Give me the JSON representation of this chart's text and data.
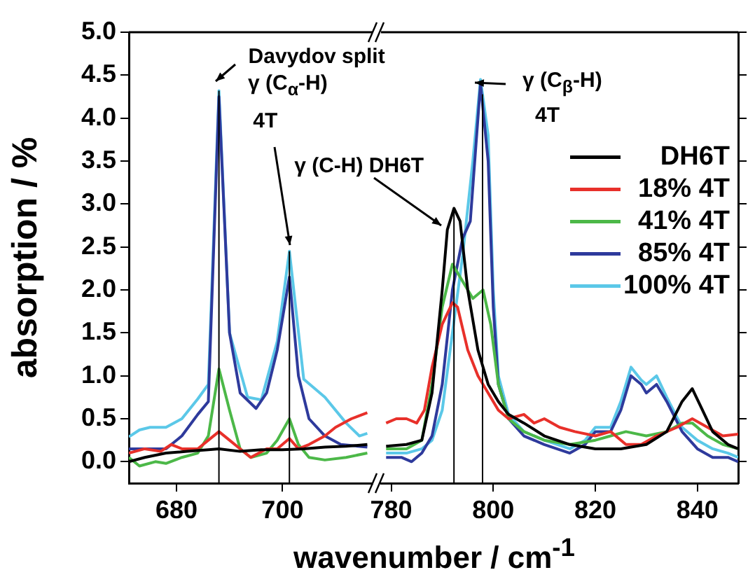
{
  "chart_data": [
    {
      "type": "line",
      "ylabel": "absorption / %",
      "xlim": [
        671,
        717
      ],
      "xticks": [
        680,
        700
      ],
      "ylim": [
        -0.25,
        5.0
      ],
      "yticks": [
        {
          "value": 0,
          "label": "0.0"
        },
        {
          "value": 0.5,
          "label": "0.5"
        },
        {
          "value": 1,
          "label": "1.0"
        },
        {
          "value": 1.5,
          "label": "1.5"
        },
        {
          "value": 2,
          "label": "2.0"
        },
        {
          "value": 2.5,
          "label": "2.5"
        },
        {
          "value": 3,
          "label": "3.0"
        },
        {
          "value": 3.5,
          "label": "3.5"
        },
        {
          "value": 4,
          "label": "4.0"
        },
        {
          "value": 4.5,
          "label": "4.5"
        },
        {
          "value": 5,
          "label": "5.0"
        }
      ],
      "grid": false,
      "legend": false,
      "marker": "none",
      "line_style": "solid",
      "series": [
        {
          "color": "#000000",
          "x": [
            671,
            674,
            678,
            682,
            686,
            688,
            692,
            696,
            700,
            704,
            708,
            712,
            716
          ],
          "values": [
            0.0,
            0.05,
            0.1,
            0.12,
            0.14,
            0.15,
            0.12,
            0.14,
            0.14,
            0.15,
            0.17,
            0.18,
            0.2
          ]
        },
        {
          "color": "#e8302a",
          "x": [
            671,
            674,
            677,
            679,
            681,
            684,
            686,
            688,
            690,
            692,
            694,
            697,
            699,
            701.3,
            703,
            705,
            708,
            710,
            713,
            716
          ],
          "values": [
            0.1,
            0.15,
            0.12,
            0.2,
            0.15,
            0.15,
            0.25,
            0.35,
            0.25,
            0.15,
            0.05,
            0.15,
            0.15,
            0.27,
            0.15,
            0.2,
            0.3,
            0.4,
            0.5,
            0.57
          ]
        },
        {
          "color": "#4cb848",
          "x": [
            671,
            673,
            676,
            678,
            681,
            684,
            686,
            688,
            690,
            692,
            694,
            697,
            699,
            701.3,
            703,
            705,
            708,
            712,
            716
          ],
          "values": [
            0.05,
            -0.05,
            0.0,
            -0.02,
            0.05,
            0.1,
            0.3,
            1.08,
            0.6,
            0.15,
            0.05,
            0.1,
            0.25,
            0.5,
            0.2,
            0.05,
            0.02,
            0.05,
            0.1
          ]
        },
        {
          "color": "#2e3a9c",
          "x": [
            671,
            678,
            681,
            684,
            686,
            688,
            690,
            692,
            695,
            697,
            699,
            701.3,
            703,
            705,
            708,
            711,
            716
          ],
          "values": [
            0.15,
            0.15,
            0.3,
            0.55,
            0.7,
            4.25,
            1.5,
            0.8,
            0.62,
            0.8,
            1.3,
            2.15,
            1.0,
            0.5,
            0.3,
            0.2,
            0.17
          ]
        },
        {
          "color": "#5bc8e8",
          "x": [
            671,
            673,
            675,
            678,
            681,
            684,
            686,
            688,
            690,
            693.4,
            696,
            699,
            701.3,
            704,
            708,
            712,
            714.5,
            716
          ],
          "values": [
            0.29,
            0.37,
            0.4,
            0.4,
            0.5,
            0.73,
            0.9,
            4.32,
            1.5,
            0.75,
            0.72,
            1.4,
            2.45,
            0.96,
            0.75,
            0.45,
            0.3,
            0.33
          ]
        }
      ],
      "ref_lines": [
        {
          "axis": "x",
          "value": 688,
          "color": "#000000"
        },
        {
          "axis": "x",
          "value": 701.3,
          "color": "#000000"
        }
      ],
      "annotations": [
        {
          "text": "Davydov split",
          "x": 688,
          "y": 4.32
        },
        "γ (C$_{α}$-H)",
        {
          "text": "4T",
          "x": 701.3,
          "y": 2.45
        }
      ]
    },
    {
      "type": "line",
      "xlabel": "wavenumber / cm$^{-1}$",
      "xlim": [
        778,
        848
      ],
      "xticks": [
        780,
        800,
        820,
        840
      ],
      "ylim": [
        -0.25,
        5.0
      ],
      "yticks": [
        {
          "value": 0,
          "label": null
        },
        {
          "value": 0.5,
          "label": null
        },
        {
          "value": 1,
          "label": null
        },
        {
          "value": 1.5,
          "label": null
        },
        {
          "value": 2,
          "label": null
        },
        {
          "value": 2.5,
          "label": null
        },
        {
          "value": 3,
          "label": null
        },
        {
          "value": 3.5,
          "label": null
        },
        {
          "value": 4,
          "label": null
        },
        {
          "value": 4.5,
          "label": null
        },
        {
          "value": 5,
          "label": null
        }
      ],
      "tick_labels": "x",
      "grid": false,
      "legend": "right",
      "marker": "none",
      "line_style": "solid",
      "series": [
        {
          "name": "DH6T",
          "color": "#000000",
          "x": [
            779,
            783,
            786,
            788,
            790,
            791,
            792.3,
            793.5,
            795,
            797,
            799,
            801,
            803,
            806,
            810,
            815,
            820,
            825,
            830,
            834,
            837,
            839,
            841,
            843,
            846,
            848
          ],
          "values": [
            0.18,
            0.2,
            0.25,
            0.8,
            2.0,
            2.7,
            2.95,
            2.8,
            2.0,
            1.3,
            0.9,
            0.7,
            0.55,
            0.45,
            0.3,
            0.2,
            0.15,
            0.15,
            0.2,
            0.35,
            0.7,
            0.85,
            0.6,
            0.35,
            0.2,
            0.15
          ]
        },
        {
          "name": "18% 4T",
          "color": "#e8302a",
          "x": [
            779,
            781,
            783,
            785,
            786.5,
            788,
            790,
            792,
            793,
            795,
            797,
            799,
            801,
            803,
            806,
            808,
            810,
            813,
            816,
            820,
            823,
            826,
            829,
            832,
            836,
            839,
            842,
            845,
            848
          ],
          "values": [
            0.45,
            0.5,
            0.5,
            0.45,
            0.6,
            1.1,
            1.6,
            1.85,
            1.8,
            1.3,
            1.0,
            0.8,
            0.6,
            0.5,
            0.55,
            0.45,
            0.5,
            0.4,
            0.35,
            0.3,
            0.35,
            0.2,
            0.2,
            0.3,
            0.4,
            0.5,
            0.4,
            0.3,
            0.32
          ]
        },
        {
          "name": "41% 4T",
          "color": "#4cb848",
          "x": [
            779,
            783,
            786,
            788,
            790,
            792,
            794,
            796,
            798,
            799.5,
            801,
            803,
            806,
            810,
            815,
            820,
            823,
            826,
            830,
            834,
            837,
            839,
            842,
            845,
            848
          ],
          "values": [
            0.15,
            0.15,
            0.25,
            0.9,
            1.8,
            2.3,
            2.1,
            1.9,
            2.0,
            1.6,
            0.9,
            0.5,
            0.35,
            0.25,
            0.2,
            0.25,
            0.3,
            0.35,
            0.3,
            0.35,
            0.45,
            0.45,
            0.3,
            0.2,
            0.15
          ]
        },
        {
          "name": "85% 4T",
          "color": "#2e3a9c",
          "x": [
            779,
            782,
            784,
            786,
            788,
            790,
            792,
            794,
            795.5,
            797.5,
            799,
            800,
            801,
            803,
            806,
            810,
            815,
            818,
            820,
            823,
            825,
            827,
            829,
            830,
            832,
            834,
            837,
            840,
            843,
            846,
            848
          ],
          "values": [
            0.05,
            0.05,
            0.0,
            0.1,
            0.3,
            0.9,
            2.0,
            2.6,
            2.8,
            4.4,
            3.5,
            1.8,
            0.9,
            0.5,
            0.3,
            0.2,
            0.1,
            0.2,
            0.35,
            0.35,
            0.6,
            1.0,
            0.9,
            0.8,
            0.9,
            0.7,
            0.35,
            0.15,
            0.05,
            0.05,
            0.0
          ]
        },
        {
          "name": "100% 4T",
          "color": "#5bc8e8",
          "x": [
            779,
            783,
            786,
            788,
            790,
            792,
            794,
            796,
            797.5,
            799,
            800,
            801,
            803,
            806,
            810,
            815,
            818,
            820,
            823,
            825,
            827,
            829,
            830,
            832,
            834,
            837,
            840,
            843,
            846,
            848
          ],
          "values": [
            0.1,
            0.1,
            0.15,
            0.25,
            0.6,
            1.5,
            2.4,
            3.5,
            4.45,
            3.8,
            2.0,
            1.0,
            0.55,
            0.35,
            0.25,
            0.15,
            0.25,
            0.4,
            0.4,
            0.7,
            1.1,
            0.95,
            0.9,
            1.0,
            0.75,
            0.4,
            0.25,
            0.15,
            0.1,
            0.05
          ]
        }
      ],
      "ref_lines": [
        {
          "axis": "x",
          "value": 792.3,
          "color": "#000000"
        },
        {
          "axis": "x",
          "value": 797.9,
          "color": "#000000"
        }
      ],
      "annotations": [
        {
          "text": "γ (C-H) DH6T",
          "x": 792.3,
          "y": 2.95
        },
        {
          "text": "γ (C$_{β}$-H)",
          "x": 797.5,
          "y": 4.45
        },
        "4T"
      ]
    }
  ]
}
